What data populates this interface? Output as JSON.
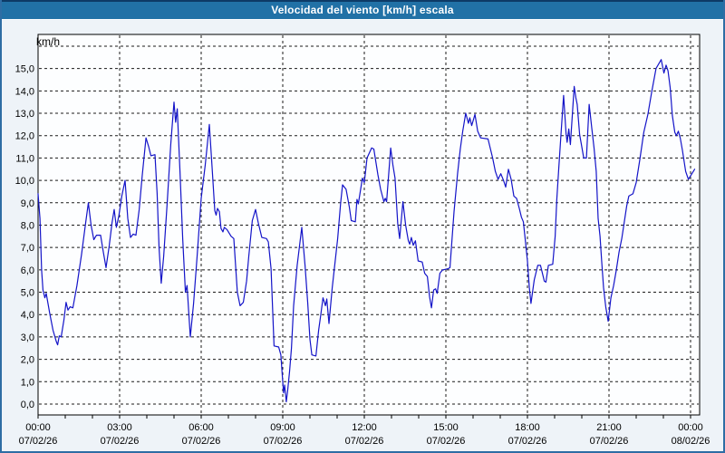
{
  "window": {
    "title": "Velocidad del viento [km/h] escala"
  },
  "colors": {
    "titlebar_bg": "#2171a6",
    "titlebar_top_edge": "#0d3a66",
    "titlebar_text": "#ffffff",
    "panel_bg": "#eef3f8",
    "frame_border": "#2e6da4",
    "plot_bg": "#fdfeff",
    "plot_border": "#000000",
    "grid": "#1a1a1a",
    "line": "#1414c8",
    "label": "#000000"
  },
  "axes": {
    "y_unit_label": "km/h",
    "y_tick_labels": [
      "0,0",
      "1,0",
      "2,0",
      "3,0",
      "4,0",
      "5,0",
      "6,0",
      "7,0",
      "8,0",
      "9,0",
      "10,0",
      "11,0",
      "12,0",
      "13,0",
      "14,0",
      "15,0"
    ],
    "x_ticks": [
      {
        "hour": 0,
        "time": "00:00",
        "date": "07/02/26"
      },
      {
        "hour": 3,
        "time": "03:00",
        "date": "07/02/26"
      },
      {
        "hour": 6,
        "time": "06:00",
        "date": "07/02/26"
      },
      {
        "hour": 9,
        "time": "09:00",
        "date": "07/02/26"
      },
      {
        "hour": 12,
        "time": "12:00",
        "date": "07/02/26"
      },
      {
        "hour": 15,
        "time": "15:00",
        "date": "07/02/26"
      },
      {
        "hour": 18,
        "time": "18:00",
        "date": "07/02/26"
      },
      {
        "hour": 21,
        "time": "21:00",
        "date": "07/02/26"
      },
      {
        "hour": 24,
        "time": "00:00",
        "date": "08/02/26"
      }
    ]
  },
  "chart_data": {
    "type": "line",
    "title": "Velocidad del viento [km/h] escala",
    "ylabel": "km/h",
    "xlabel": "",
    "x_unit": "hours_since_00:00_07/02/26",
    "xlim": [
      0,
      24.33
    ],
    "ylim": [
      0,
      16.5
    ],
    "y_gridline_values": [
      0,
      1,
      2,
      3,
      4,
      5,
      6,
      7,
      8,
      9,
      10,
      11,
      12,
      13,
      14,
      15,
      16
    ],
    "x_gridline_step_hours": 3,
    "x_minor_tick_step_hours": 1,
    "grid": "dashed",
    "legend_position": "none",
    "series": [
      {
        "name": "Velocidad del viento",
        "color": "#1414c8",
        "points": [
          [
            0.0,
            9.4
          ],
          [
            0.07,
            8.3
          ],
          [
            0.13,
            6.0
          ],
          [
            0.18,
            5.1
          ],
          [
            0.25,
            4.75
          ],
          [
            0.3,
            4.95
          ],
          [
            0.35,
            4.6
          ],
          [
            0.43,
            4.05
          ],
          [
            0.55,
            3.3
          ],
          [
            0.67,
            2.8
          ],
          [
            0.72,
            2.65
          ],
          [
            0.78,
            3.05
          ],
          [
            0.85,
            3.0
          ],
          [
            0.95,
            3.75
          ],
          [
            1.03,
            4.55
          ],
          [
            1.1,
            4.2
          ],
          [
            1.18,
            4.35
          ],
          [
            1.28,
            4.3
          ],
          [
            1.43,
            5.3
          ],
          [
            1.6,
            6.7
          ],
          [
            1.75,
            8.1
          ],
          [
            1.85,
            9.0
          ],
          [
            1.95,
            8.0
          ],
          [
            2.05,
            7.35
          ],
          [
            2.15,
            7.55
          ],
          [
            2.3,
            7.55
          ],
          [
            2.4,
            6.8
          ],
          [
            2.5,
            6.1
          ],
          [
            2.62,
            7.1
          ],
          [
            2.72,
            8.1
          ],
          [
            2.8,
            8.7
          ],
          [
            2.88,
            7.9
          ],
          [
            2.97,
            8.4
          ],
          [
            3.08,
            9.3
          ],
          [
            3.2,
            10.0
          ],
          [
            3.3,
            8.3
          ],
          [
            3.4,
            7.45
          ],
          [
            3.5,
            7.6
          ],
          [
            3.6,
            7.55
          ],
          [
            3.72,
            8.7
          ],
          [
            3.83,
            10.2
          ],
          [
            3.97,
            11.9
          ],
          [
            4.07,
            11.5
          ],
          [
            4.15,
            11.1
          ],
          [
            4.3,
            11.15
          ],
          [
            4.38,
            9.4
          ],
          [
            4.45,
            7.0
          ],
          [
            4.53,
            5.4
          ],
          [
            4.62,
            6.6
          ],
          [
            4.75,
            9.0
          ],
          [
            4.88,
            11.6
          ],
          [
            5.0,
            13.5
          ],
          [
            5.06,
            12.6
          ],
          [
            5.12,
            13.2
          ],
          [
            5.22,
            10.4
          ],
          [
            5.32,
            7.4
          ],
          [
            5.42,
            5.0
          ],
          [
            5.48,
            5.3
          ],
          [
            5.6,
            3.0
          ],
          [
            5.72,
            4.5
          ],
          [
            5.85,
            6.6
          ],
          [
            6.0,
            9.2
          ],
          [
            6.15,
            10.7
          ],
          [
            6.3,
            12.5
          ],
          [
            6.4,
            10.6
          ],
          [
            6.5,
            8.65
          ],
          [
            6.55,
            8.45
          ],
          [
            6.6,
            8.75
          ],
          [
            6.67,
            8.6
          ],
          [
            6.73,
            7.85
          ],
          [
            6.8,
            7.7
          ],
          [
            6.85,
            7.9
          ],
          [
            6.95,
            7.8
          ],
          [
            7.1,
            7.5
          ],
          [
            7.2,
            7.4
          ],
          [
            7.33,
            5.0
          ],
          [
            7.43,
            4.4
          ],
          [
            7.55,
            4.55
          ],
          [
            7.67,
            5.5
          ],
          [
            7.75,
            6.6
          ],
          [
            7.88,
            8.2
          ],
          [
            8.0,
            8.7
          ],
          [
            8.1,
            8.1
          ],
          [
            8.23,
            7.45
          ],
          [
            8.4,
            7.4
          ],
          [
            8.47,
            7.25
          ],
          [
            8.57,
            6.05
          ],
          [
            8.68,
            2.6
          ],
          [
            8.85,
            2.55
          ],
          [
            8.93,
            2.2
          ],
          [
            9.0,
            1.0
          ],
          [
            9.03,
            0.5
          ],
          [
            9.07,
            0.85
          ],
          [
            9.13,
            0.1
          ],
          [
            9.18,
            0.6
          ],
          [
            9.25,
            1.45
          ],
          [
            9.32,
            2.5
          ],
          [
            9.4,
            4.4
          ],
          [
            9.53,
            6.2
          ],
          [
            9.7,
            7.9
          ],
          [
            9.82,
            6.2
          ],
          [
            9.92,
            4.5
          ],
          [
            10.0,
            2.9
          ],
          [
            10.07,
            2.2
          ],
          [
            10.22,
            2.15
          ],
          [
            10.32,
            3.3
          ],
          [
            10.4,
            4.0
          ],
          [
            10.48,
            4.75
          ],
          [
            10.57,
            4.4
          ],
          [
            10.62,
            4.7
          ],
          [
            10.7,
            3.6
          ],
          [
            10.82,
            5.2
          ],
          [
            10.92,
            6.3
          ],
          [
            11.02,
            7.4
          ],
          [
            11.13,
            9.0
          ],
          [
            11.2,
            9.8
          ],
          [
            11.33,
            9.6
          ],
          [
            11.45,
            8.8
          ],
          [
            11.52,
            8.2
          ],
          [
            11.67,
            8.15
          ],
          [
            11.73,
            9.15
          ],
          [
            11.78,
            8.95
          ],
          [
            11.93,
            10.1
          ],
          [
            12.0,
            9.9
          ],
          [
            12.1,
            11.0
          ],
          [
            12.27,
            11.45
          ],
          [
            12.35,
            11.4
          ],
          [
            12.5,
            10.25
          ],
          [
            12.6,
            9.6
          ],
          [
            12.72,
            9.05
          ],
          [
            12.77,
            9.2
          ],
          [
            12.82,
            9.05
          ],
          [
            12.97,
            11.45
          ],
          [
            13.05,
            10.7
          ],
          [
            13.13,
            10.1
          ],
          [
            13.23,
            8.05
          ],
          [
            13.3,
            7.4
          ],
          [
            13.42,
            9.05
          ],
          [
            13.52,
            8.0
          ],
          [
            13.62,
            7.3
          ],
          [
            13.67,
            7.15
          ],
          [
            13.73,
            7.45
          ],
          [
            13.8,
            7.1
          ],
          [
            13.88,
            7.3
          ],
          [
            13.98,
            6.4
          ],
          [
            14.13,
            6.35
          ],
          [
            14.22,
            5.85
          ],
          [
            14.32,
            5.7
          ],
          [
            14.4,
            4.8
          ],
          [
            14.47,
            4.3
          ],
          [
            14.55,
            5.1
          ],
          [
            14.62,
            5.15
          ],
          [
            14.68,
            4.95
          ],
          [
            14.78,
            5.85
          ],
          [
            14.88,
            6.0
          ],
          [
            15.08,
            6.05
          ],
          [
            15.15,
            6.1
          ],
          [
            15.3,
            8.6
          ],
          [
            15.43,
            10.3
          ],
          [
            15.53,
            11.4
          ],
          [
            15.62,
            12.2
          ],
          [
            15.73,
            13.0
          ],
          [
            15.83,
            12.55
          ],
          [
            15.88,
            12.8
          ],
          [
            15.95,
            12.45
          ],
          [
            16.07,
            12.95
          ],
          [
            16.17,
            12.2
          ],
          [
            16.28,
            11.9
          ],
          [
            16.55,
            11.85
          ],
          [
            16.72,
            11.0
          ],
          [
            16.82,
            10.4
          ],
          [
            16.92,
            10.05
          ],
          [
            17.02,
            10.3
          ],
          [
            17.12,
            10.0
          ],
          [
            17.2,
            9.7
          ],
          [
            17.3,
            10.5
          ],
          [
            17.4,
            10.05
          ],
          [
            17.5,
            9.3
          ],
          [
            17.6,
            9.2
          ],
          [
            17.7,
            8.75
          ],
          [
            17.78,
            8.35
          ],
          [
            17.85,
            8.15
          ],
          [
            17.92,
            7.35
          ],
          [
            18.0,
            6.4
          ],
          [
            18.07,
            5.2
          ],
          [
            18.13,
            4.5
          ],
          [
            18.25,
            5.55
          ],
          [
            18.38,
            6.2
          ],
          [
            18.48,
            6.2
          ],
          [
            18.62,
            5.5
          ],
          [
            18.68,
            5.45
          ],
          [
            18.77,
            6.2
          ],
          [
            18.93,
            6.25
          ],
          [
            19.02,
            7.5
          ],
          [
            19.08,
            9.15
          ],
          [
            19.15,
            10.5
          ],
          [
            19.22,
            11.8
          ],
          [
            19.33,
            13.8
          ],
          [
            19.42,
            12.1
          ],
          [
            19.46,
            11.7
          ],
          [
            19.52,
            12.3
          ],
          [
            19.58,
            11.6
          ],
          [
            19.72,
            14.2
          ],
          [
            19.78,
            13.7
          ],
          [
            19.83,
            13.4
          ],
          [
            19.92,
            12.05
          ],
          [
            20.0,
            11.5
          ],
          [
            20.07,
            11.0
          ],
          [
            20.17,
            11.0
          ],
          [
            20.27,
            13.4
          ],
          [
            20.37,
            12.3
          ],
          [
            20.45,
            11.45
          ],
          [
            20.53,
            10.4
          ],
          [
            20.6,
            8.3
          ],
          [
            20.67,
            7.5
          ],
          [
            20.73,
            6.4
          ],
          [
            20.8,
            5.2
          ],
          [
            20.88,
            4.35
          ],
          [
            20.97,
            3.7
          ],
          [
            21.07,
            4.75
          ],
          [
            21.17,
            5.3
          ],
          [
            21.27,
            6.0
          ],
          [
            21.37,
            6.8
          ],
          [
            21.47,
            7.4
          ],
          [
            21.57,
            8.2
          ],
          [
            21.65,
            8.85
          ],
          [
            21.73,
            9.3
          ],
          [
            21.88,
            9.4
          ],
          [
            22.0,
            9.9
          ],
          [
            22.13,
            10.9
          ],
          [
            22.28,
            12.15
          ],
          [
            22.43,
            12.95
          ],
          [
            22.57,
            13.95
          ],
          [
            22.73,
            15.0
          ],
          [
            22.92,
            15.4
          ],
          [
            23.02,
            14.8
          ],
          [
            23.1,
            15.15
          ],
          [
            23.17,
            14.9
          ],
          [
            23.25,
            14.15
          ],
          [
            23.33,
            12.9
          ],
          [
            23.42,
            12.15
          ],
          [
            23.48,
            12.0
          ],
          [
            23.55,
            12.2
          ],
          [
            23.62,
            11.9
          ],
          [
            23.7,
            11.35
          ],
          [
            23.82,
            10.4
          ],
          [
            23.92,
            10.05
          ],
          [
            24.05,
            10.3
          ],
          [
            24.15,
            10.5
          ]
        ]
      }
    ]
  }
}
